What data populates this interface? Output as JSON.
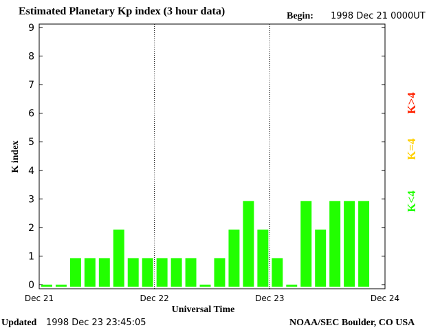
{
  "header": {
    "title": "Estimated Planetary Kp index (3 hour data)",
    "begin_label": "Begin:",
    "begin_value": "1998 Dec 21 0000UT"
  },
  "footer": {
    "updated_label": "Updated",
    "updated_value": "1998 Dec 23 23:45:05",
    "credit": "NOAA/SEC Boulder, CO USA"
  },
  "legend": {
    "gt4": "K>4",
    "eq4": "K=4",
    "lt4": "K<4"
  },
  "colors": {
    "lt4": "#22ff00",
    "eq4": "#ffd000",
    "gt4": "#ff2200"
  },
  "chart_data": {
    "type": "bar",
    "title": "Estimated Planetary Kp index (3 hour data)",
    "xlabel": "Universal Time",
    "ylabel": "K index",
    "ylim": [
      0,
      9
    ],
    "yticks": [
      0,
      1,
      2,
      3,
      4,
      5,
      6,
      7,
      8,
      9
    ],
    "day_labels": [
      "Dec 21",
      "Dec 22",
      "Dec 23",
      "Dec 24"
    ],
    "interval_hours": 3,
    "values": [
      0,
      0,
      1,
      1,
      1,
      2,
      1,
      1,
      1,
      1,
      1,
      0,
      1,
      2,
      3,
      2,
      1,
      0,
      3,
      2,
      3,
      3,
      3
    ],
    "grid": "dotted vertical lines at day boundaries"
  }
}
